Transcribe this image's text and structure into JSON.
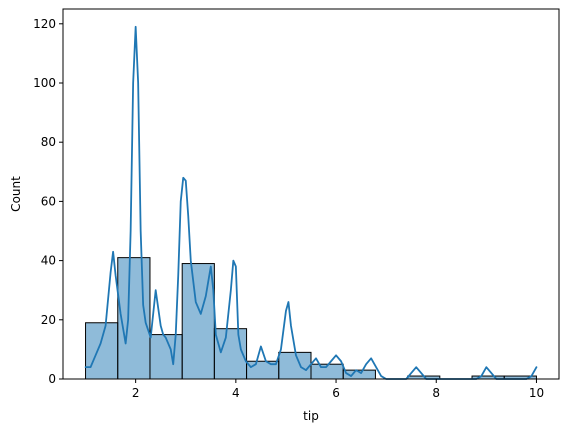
{
  "chart_data": {
    "type": "bar",
    "title": "",
    "xlabel": "tip",
    "ylabel": "Count",
    "xlim": [
      0.55,
      10.45
    ],
    "ylim": [
      0,
      125
    ],
    "xticks": [
      2,
      4,
      6,
      8,
      10
    ],
    "yticks": [
      0,
      20,
      40,
      60,
      80,
      100,
      120
    ],
    "grid": false,
    "legend": "none",
    "bins": [
      {
        "x0": 1.0,
        "x1": 1.643,
        "count": 19
      },
      {
        "x0": 1.643,
        "x1": 2.286,
        "count": 41
      },
      {
        "x0": 2.286,
        "x1": 2.929,
        "count": 15
      },
      {
        "x0": 2.929,
        "x1": 3.571,
        "count": 39
      },
      {
        "x0": 3.571,
        "x1": 4.214,
        "count": 17
      },
      {
        "x0": 4.214,
        "x1": 4.857,
        "count": 6
      },
      {
        "x0": 4.857,
        "x1": 5.5,
        "count": 9
      },
      {
        "x0": 5.5,
        "x1": 6.143,
        "count": 5
      },
      {
        "x0": 6.143,
        "x1": 6.786,
        "count": 3
      },
      {
        "x0": 6.786,
        "x1": 7.429,
        "count": 0
      },
      {
        "x0": 7.429,
        "x1": 8.071,
        "count": 1
      },
      {
        "x0": 8.071,
        "x1": 8.714,
        "count": 0
      },
      {
        "x0": 8.714,
        "x1": 9.357,
        "count": 1
      },
      {
        "x0": 9.357,
        "x1": 10.0,
        "count": 1
      }
    ],
    "kde": {
      "x": [
        1.0,
        1.1,
        1.2,
        1.3,
        1.4,
        1.5,
        1.55,
        1.6,
        1.7,
        1.8,
        1.85,
        1.9,
        1.95,
        2.0,
        2.05,
        2.1,
        2.15,
        2.2,
        2.3,
        2.4,
        2.5,
        2.55,
        2.6,
        2.7,
        2.75,
        2.8,
        2.85,
        2.9,
        2.95,
        3.0,
        3.05,
        3.1,
        3.2,
        3.3,
        3.4,
        3.5,
        3.55,
        3.6,
        3.7,
        3.8,
        3.9,
        3.95,
        4.0,
        4.05,
        4.1,
        4.2,
        4.3,
        4.4,
        4.5,
        4.6,
        4.7,
        4.8,
        4.9,
        5.0,
        5.05,
        5.1,
        5.2,
        5.3,
        5.4,
        5.5,
        5.6,
        5.7,
        5.8,
        5.9,
        6.0,
        6.1,
        6.2,
        6.3,
        6.4,
        6.5,
        6.6,
        6.7,
        6.8,
        6.9,
        7.0,
        7.2,
        7.4,
        7.5,
        7.6,
        7.7,
        7.8,
        8.0,
        8.2,
        8.4,
        8.6,
        8.8,
        8.9,
        9.0,
        9.1,
        9.2,
        9.4,
        9.6,
        9.8,
        9.9,
        10.0
      ],
      "y": [
        4,
        4,
        8,
        12,
        18,
        36,
        43,
        35,
        22,
        12,
        20,
        50,
        100,
        119,
        100,
        50,
        25,
        19,
        14,
        30,
        18,
        15,
        14,
        10,
        5,
        15,
        35,
        60,
        68,
        67,
        55,
        40,
        26,
        22,
        28,
        38,
        30,
        15,
        9,
        14,
        30,
        40,
        38,
        15,
        10,
        6,
        4,
        5,
        11,
        6,
        5,
        5,
        10,
        23,
        26,
        18,
        8,
        4,
        3,
        5,
        7,
        4,
        4,
        6,
        8,
        6,
        2,
        1,
        3,
        2,
        5,
        7,
        4,
        1,
        0,
        0,
        0,
        2,
        4,
        2,
        0,
        0,
        0,
        0,
        0,
        0,
        1,
        4,
        2,
        0,
        0,
        0,
        0,
        1,
        4
      ]
    }
  },
  "colors": {
    "bar_fill": "#1f77b4",
    "bar_opacity": 0.5,
    "bar_edge": "#000000",
    "kde_line": "#1f77b4",
    "axis": "#000000"
  }
}
